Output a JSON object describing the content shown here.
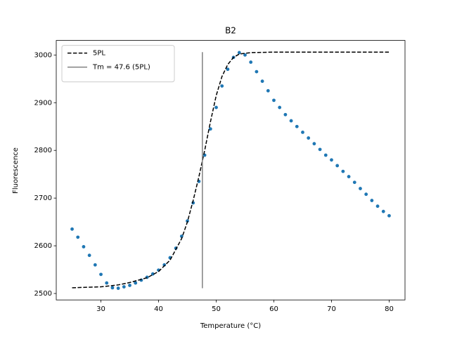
{
  "chart_data": {
    "type": "line",
    "title": "B2",
    "xlabel": "Temperature (°C)",
    "ylabel": "Fluorescence",
    "xlim": [
      22.25,
      82.75
    ],
    "ylim": [
      2486.5,
      3030.5
    ],
    "xticks": [
      30,
      40,
      50,
      60,
      70,
      80
    ],
    "yticks": [
      2500,
      2600,
      2700,
      2800,
      2900,
      3000
    ],
    "legend": "upper left",
    "series": [
      {
        "style": "dots",
        "color": "#1f77b4",
        "x": [
          25,
          26,
          27,
          28,
          29,
          30,
          31,
          32,
          33,
          34,
          35,
          36,
          37,
          38,
          39,
          40,
          41,
          42,
          43,
          44,
          45,
          46,
          47,
          48,
          49,
          50,
          51,
          52,
          53,
          54,
          55,
          56,
          57,
          58,
          59,
          60,
          61,
          62,
          63,
          64,
          65,
          66,
          67,
          68,
          69,
          70,
          71,
          72,
          73,
          74,
          75,
          76,
          77,
          78,
          79,
          80
        ],
        "values": [
          2635,
          2618,
          2598,
          2580,
          2560,
          2540,
          2522,
          2512,
          2511,
          2514,
          2517,
          2522,
          2528,
          2534,
          2541,
          2549,
          2560,
          2575,
          2595,
          2620,
          2652,
          2690,
          2735,
          2790,
          2845,
          2890,
          2935,
          2970,
          2995,
          3005,
          3000,
          2985,
          2965,
          2945,
          2925,
          2905,
          2890,
          2875,
          2862,
          2850,
          2838,
          2826,
          2814,
          2802,
          2790,
          2780,
          2768,
          2756,
          2745,
          2733,
          2720,
          2708,
          2695,
          2683,
          2672,
          2663
        ]
      },
      {
        "style": "dashed",
        "name": "5PL",
        "color": "#000000",
        "x": [
          25,
          30,
          33,
          35,
          38,
          40,
          42,
          44,
          45,
          46,
          47,
          48,
          49,
          50,
          51,
          52,
          53,
          54,
          56,
          60,
          80
        ],
        "values": [
          2512,
          2514,
          2518,
          2523,
          2533,
          2546,
          2570,
          2615,
          2650,
          2695,
          2745,
          2800,
          2860,
          2915,
          2955,
          2980,
          2995,
          3002,
          3005,
          3006,
          3006
        ]
      }
    ],
    "vlines": [
      {
        "name": "Tm = 47.6 (5PL)",
        "color": "#808080",
        "x": 47.6,
        "ymin": 2511,
        "ymax": 3006
      }
    ]
  }
}
